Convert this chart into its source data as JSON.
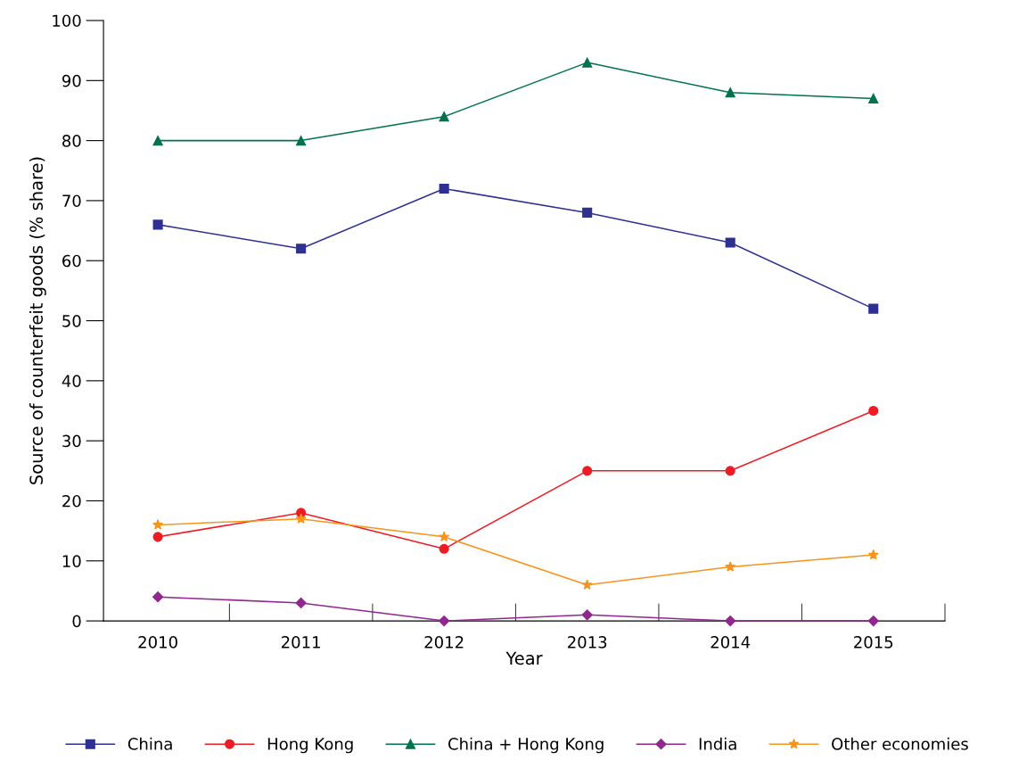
{
  "chart_data": {
    "type": "line",
    "xlabel": "Year",
    "ylabel": "Source of counterfeit goods (% share)",
    "categories": [
      "2010",
      "2011",
      "2012",
      "2013",
      "2014",
      "2015"
    ],
    "ylim": [
      0,
      100
    ],
    "yticks": [
      0,
      10,
      20,
      30,
      40,
      50,
      60,
      70,
      80,
      90,
      100
    ],
    "grid": false,
    "legend": "bottom",
    "line_style": "solid",
    "series": [
      {
        "name": "China",
        "color": "#2e3192",
        "marker": "square",
        "values": [
          66,
          62,
          72,
          68,
          63,
          52
        ]
      },
      {
        "name": "Hong Kong",
        "color": "#ed1c24",
        "marker": "circle",
        "values": [
          14,
          18,
          12,
          25,
          25,
          35
        ]
      },
      {
        "name": "China + Hong Kong",
        "color": "#00734a",
        "marker": "triangle",
        "values": [
          80,
          80,
          84,
          93,
          88,
          87
        ]
      },
      {
        "name": "India",
        "color": "#92278f",
        "marker": "diamond",
        "values": [
          4,
          3,
          0,
          1,
          0,
          0
        ]
      },
      {
        "name": "Other economies",
        "color": "#f7941d",
        "marker": "star",
        "values": [
          16,
          17,
          14,
          6,
          9,
          11
        ]
      }
    ]
  }
}
